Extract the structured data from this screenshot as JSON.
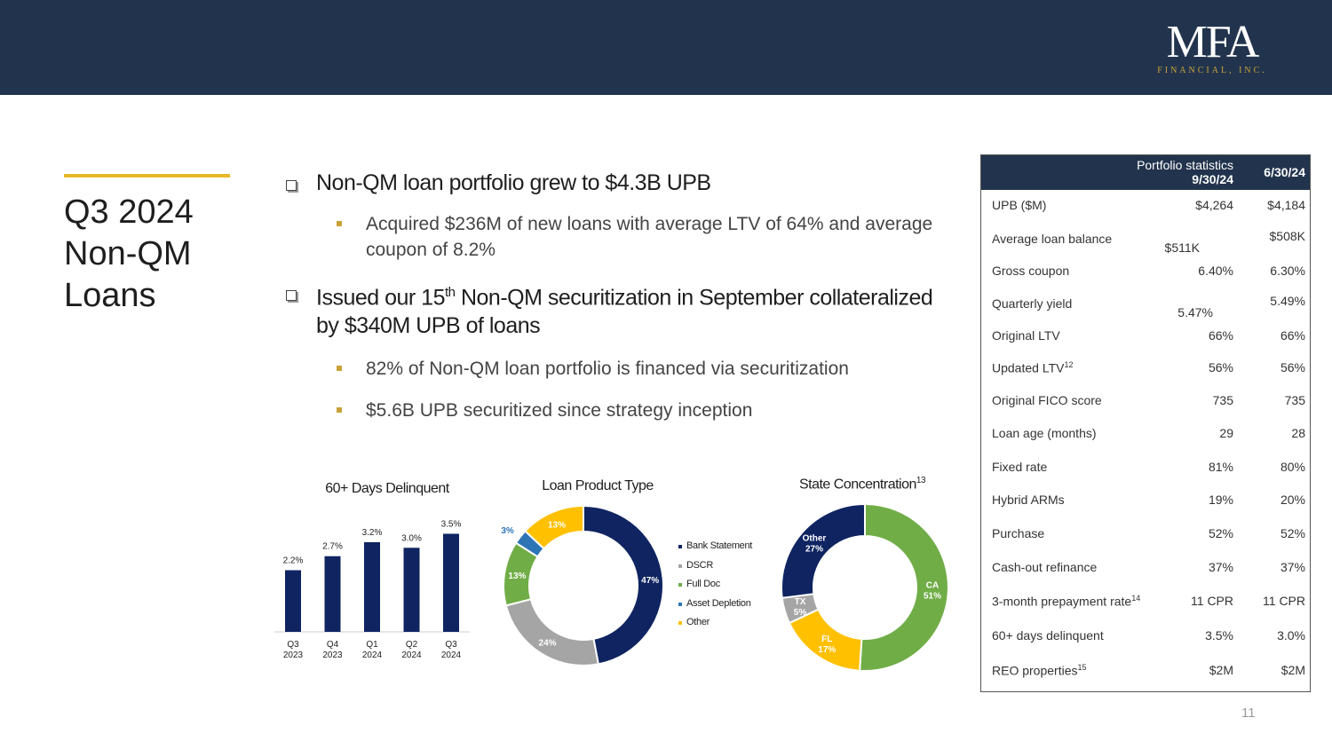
{
  "header": {
    "logo_main": "MFA",
    "logo_sub": "FINANCIAL, INC."
  },
  "title": {
    "lines": [
      "Q3 2024",
      "Non-QM",
      "Loans"
    ]
  },
  "bullets": {
    "b1": "Non-QM loan portfolio grew to $4.3B UPB",
    "b1_sub1": "Acquired $236M of new loans with average LTV of 64% and average coupon of 8.2%",
    "b2_pre": "Issued our 15",
    "b2_sup": "th",
    "b2_post": " Non-QM securitization in September collateralized by $340M UPB of loans",
    "b2_sub1": "82% of Non-QM loan portfolio is financed via securitization",
    "b2_sub2": "$5.6B UPB securitized since strategy inception"
  },
  "colors": {
    "navy": "#22344d",
    "gold_accent": "#e7b828",
    "bar_navy": "#0f2461",
    "green": "#70ad47",
    "gray": "#a5a5a5",
    "blue": "#2e75b6",
    "yellow": "#ffc000"
  },
  "chart_data": [
    {
      "type": "bar",
      "title": "60+ Days Delinquent",
      "categories": [
        [
          "Q3",
          "2023"
        ],
        [
          "Q4",
          "2023"
        ],
        [
          "Q1",
          "2024"
        ],
        [
          "Q2",
          "2024"
        ],
        [
          "Q3",
          "2024"
        ]
      ],
      "values": [
        2.2,
        2.7,
        3.2,
        3.0,
        3.5
      ],
      "data_labels": [
        "2.2%",
        "2.7%",
        "3.2%",
        "3.0%",
        "3.5%"
      ],
      "ylim": [
        0,
        3.8
      ],
      "grid": false,
      "legend": "none",
      "color": "#0f2461"
    },
    {
      "type": "pie",
      "donut": true,
      "title": "Loan Product Type",
      "labels": [
        "Bank Statement",
        "DSCR",
        "Full Doc",
        "Asset Depletion",
        "Other"
      ],
      "values": [
        47,
        24,
        13,
        3,
        13
      ],
      "data_labels": [
        "47%",
        "24%",
        "13%",
        "3%",
        "13%"
      ],
      "colors": [
        "#0f2461",
        "#a5a5a5",
        "#70ad47",
        "#2e75b6",
        "#ffc000"
      ],
      "legend": "right"
    },
    {
      "type": "pie",
      "donut": true,
      "title": "State Concentration",
      "title_sup": "13",
      "labels": [
        "CA",
        "FL",
        "TX",
        "Other"
      ],
      "values": [
        51,
        17,
        5,
        27
      ],
      "data_labels": [
        "51%",
        "17%",
        "5%",
        "27%"
      ],
      "colors": [
        "#70ad47",
        "#ffc000",
        "#a5a5a5",
        "#0f2461"
      ],
      "legend": "none"
    }
  ],
  "stats_table": {
    "title": "Portfolio statistics",
    "col_current": "9/30/24",
    "col_prior": "6/30/24",
    "rows": [
      {
        "label": "UPB ($M)",
        "sup": "",
        "current": "$4,264",
        "prior": "$4,184"
      },
      {
        "label": "Average loan balance",
        "sup": "",
        "current": "$511K",
        "prior": "$508K"
      },
      {
        "label": "Gross coupon",
        "sup": "",
        "current": "6.40%",
        "prior": "6.30%"
      },
      {
        "label": "Quarterly yield",
        "sup": "",
        "current": "5.47%",
        "prior": "5.49%"
      },
      {
        "label": "Original LTV",
        "sup": "",
        "current": "66%",
        "prior": "66%"
      },
      {
        "label": "Updated LTV",
        "sup": "12",
        "current": "56%",
        "prior": "56%"
      },
      {
        "label": "Original FICO score",
        "sup": "",
        "current": "735",
        "prior": "735"
      },
      {
        "label": "Loan age (months)",
        "sup": "",
        "current": "29",
        "prior": "28"
      },
      {
        "label": "Fixed rate",
        "sup": "",
        "current": "81%",
        "prior": "80%"
      },
      {
        "label": "Hybrid ARMs",
        "sup": "",
        "current": "19%",
        "prior": "20%"
      },
      {
        "label": "Purchase",
        "sup": "",
        "current": "52%",
        "prior": "52%"
      },
      {
        "label": "Cash-out refinance",
        "sup": "",
        "current": "37%",
        "prior": "37%"
      },
      {
        "label": "3-month prepayment rate",
        "sup": "14",
        "current": "11 CPR",
        "prior": "11 CPR"
      },
      {
        "label": "60+ days delinquent",
        "sup": "",
        "current": "3.5%",
        "prior": "3.0%"
      },
      {
        "label": "REO properties",
        "sup": "15",
        "current": "$2M",
        "prior": "$2M"
      }
    ]
  },
  "page_number": "11"
}
